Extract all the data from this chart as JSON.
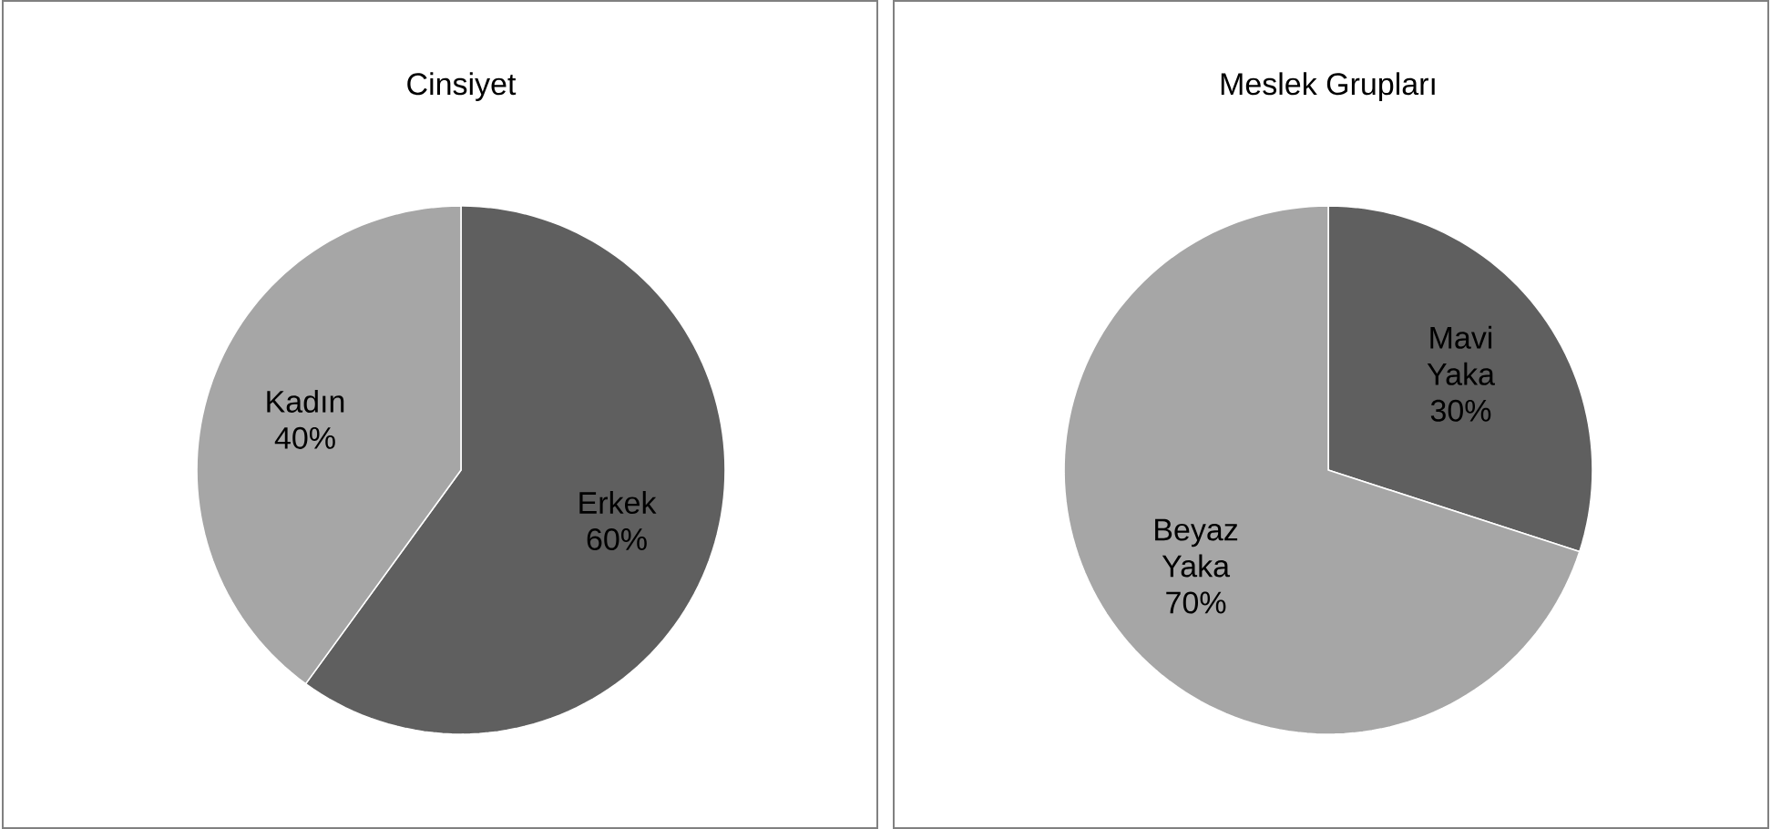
{
  "chart_data": [
    {
      "type": "pie",
      "title": "Cinsiyet",
      "categories": [
        "Erkek",
        "Kadın"
      ],
      "values": [
        60,
        40
      ],
      "value_labels": [
        "60%",
        "40%"
      ],
      "colors": [
        "#5f5f5f",
        "#a6a6a6"
      ]
    },
    {
      "type": "pie",
      "title": "Meslek Grupları",
      "categories": [
        "Mavi Yaka",
        "Beyaz Yaka"
      ],
      "values": [
        30,
        70
      ],
      "value_labels": [
        "30%",
        "70%"
      ],
      "colors": [
        "#5f5f5f",
        "#a6a6a6"
      ]
    }
  ]
}
